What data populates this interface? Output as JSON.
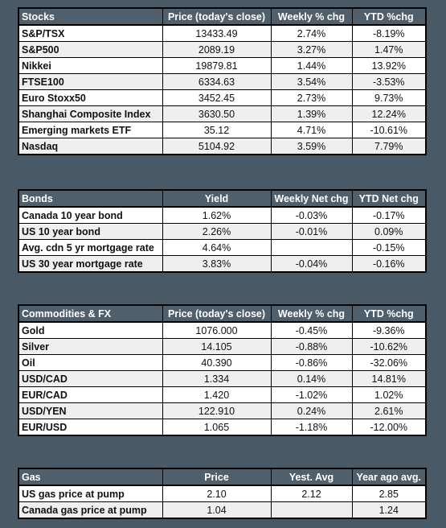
{
  "stocks": {
    "headers": [
      "Stocks",
      "Price (today's close)",
      "Weekly % chg",
      "YTD %chg"
    ],
    "rows": [
      [
        "S&P/TSX",
        "13433.49",
        "2.74%",
        "-8.19%"
      ],
      [
        "S&P500",
        "2089.19",
        "3.27%",
        "1.47%"
      ],
      [
        "Nikkei",
        "19879.81",
        "1.44%",
        "13.92%"
      ],
      [
        "FTSE100",
        "6334.63",
        "3.54%",
        "-3.53%"
      ],
      [
        "Euro Stoxx50",
        "3452.45",
        "2.73%",
        "9.73%"
      ],
      [
        "Shanghai Composite Index",
        "3630.50",
        "1.39%",
        "12.24%"
      ],
      [
        "Emerging markets ETF",
        "35.12",
        "4.71%",
        "-10.61%"
      ],
      [
        "Nasdaq",
        "5104.92",
        "3.59%",
        "7.79%"
      ]
    ]
  },
  "bonds": {
    "headers": [
      "Bonds",
      "Yield",
      "Weekly Net chg",
      "YTD Net chg"
    ],
    "rows": [
      [
        "Canada 10 year bond",
        "1.62%",
        "-0.03%",
        "-0.17%"
      ],
      [
        "US 10 year bond",
        "2.26%",
        "-0.01%",
        "0.09%"
      ],
      [
        "Avg. cdn 5 yr mortgage rate",
        "4.64%",
        "",
        "-0.15%"
      ],
      [
        "US 30 year mortgage rate",
        "3.83%",
        "-0.04%",
        "-0.16%"
      ]
    ]
  },
  "commodities": {
    "headers": [
      "Commodities & FX",
      "Price (today's close)",
      "Weekly % chg",
      "YTD %chg"
    ],
    "rows": [
      [
        "Gold",
        "1076.000",
        "-0.45%",
        "-9.36%"
      ],
      [
        "Silver",
        "14.105",
        "-0.88%",
        "-10.62%"
      ],
      [
        "Oil",
        "40.390",
        "-0.86%",
        "-32.06%"
      ],
      [
        "USD/CAD",
        "1.334",
        "0.14%",
        "14.81%"
      ],
      [
        "EUR/CAD",
        "1.420",
        "-1.02%",
        "1.02%"
      ],
      [
        "USD/YEN",
        "122.910",
        "0.24%",
        "2.61%"
      ],
      [
        "EUR/USD",
        "1.065",
        "-1.18%",
        "-12.00%"
      ]
    ]
  },
  "gas": {
    "headers": [
      "Gas",
      "Price",
      "Yest. Avg",
      "Year ago avg."
    ],
    "rows": [
      [
        "US gas price at pump",
        "2.10",
        "2.12",
        "2.85"
      ],
      [
        "Canada gas price at pump",
        "1.04",
        "",
        "1.24"
      ]
    ]
  }
}
